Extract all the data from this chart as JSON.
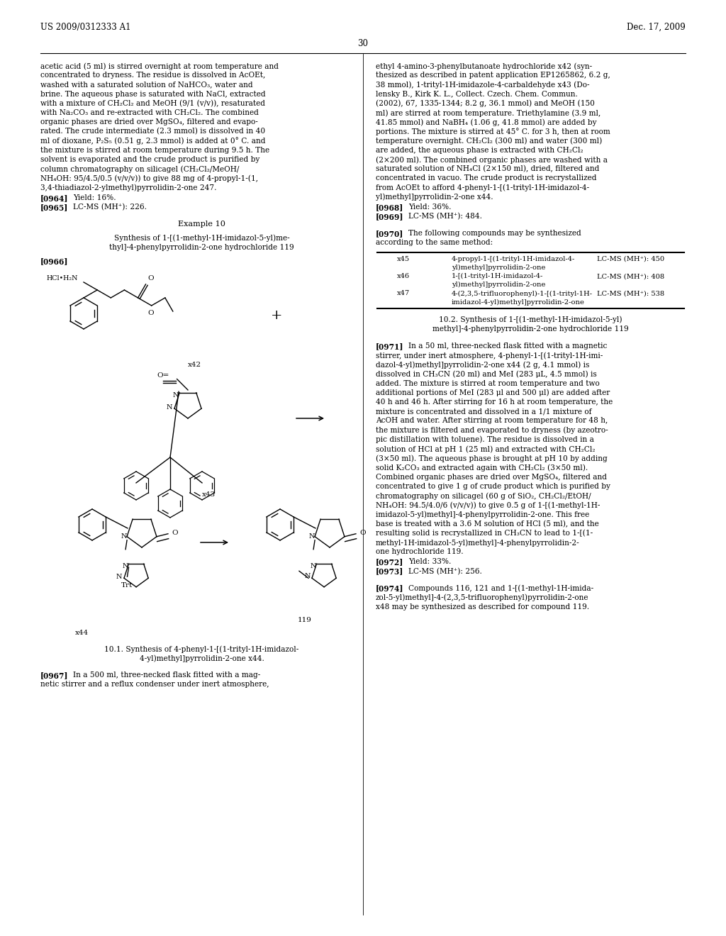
{
  "page_width": 10.24,
  "page_height": 13.2,
  "bg_color": "#ffffff",
  "header_left": "US 2009/0312333 A1",
  "header_right": "Dec. 17, 2009",
  "page_number": "30",
  "left_col_lines": [
    "acetic acid (5 ml) is stirred overnight at room temperature and",
    "concentrated to dryness. The residue is dissolved in AcOEt,",
    "washed with a saturated solution of NaHCO₃, water and",
    "brine. The aqueous phase is saturated with NaCl, extracted",
    "with a mixture of CH₂Cl₂ and MeOH (9/1 (v/v)), resaturated",
    "with Na₂CO₃ and re-extracted with CH₂Cl₂. The combined",
    "organic phases are dried over MgSO₄, filtered and evapo-",
    "rated. The crude intermediate (2.3 mmol) is dissolved in 40",
    "ml of dioxane, P₂S₅ (0.51 g, 2.3 mmol) is added at 0° C. and",
    "the mixture is stirred at room temperature during 9.5 h. The",
    "solvent is evaporated and the crude product is purified by",
    "column chromatography on silicagel (CH₂Cl₂/MeOH/",
    "NH₄OH: 95/4.5/0.5 (v/v/v)) to give 88 mg of 4-propyl-1-(1,",
    "3,4-thiadiazol-2-ylmethyl)pyrrolidin-2-one 247."
  ],
  "right_col_lines": [
    "ethyl 4-amino-3-phenylbutanoate hydrochloride x42 (syn-",
    "thesized as described in patent application EP1265862, 6.2 g,",
    "38 mmol), 1-trityl-1H-imidazole-4-carbaldehyde x43 (Do-",
    "lensky B., Kirk K. L., Collect. Czech. Chem. Commun.",
    "(2002), 67, 1335-1344; 8.2 g, 36.1 mmol) and MeOH (150",
    "ml) are stirred at room temperature. Triethylamine (3.9 ml,",
    "41.85 mmol) and NaBH₄ (1.06 g, 41.8 mmol) are added by",
    "portions. The mixture is stirred at 45° C. for 3 h, then at room",
    "temperature overnight. CH₂Cl₂ (300 ml) and water (300 ml)",
    "are added, the aqueous phase is extracted with CH₂Cl₂",
    "(2×200 ml). The combined organic phases are washed with a",
    "saturated solution of NH₄Cl (2×150 ml), dried, filtered and",
    "concentrated in vacuo. The crude product is recrystallized",
    "from AcOEt to afford 4-phenyl-1-[(1-trityl-1H-imidazol-4-",
    "yl)methyl]pyrrolidin-2-one x44."
  ],
  "right_lower_lines": [
    "stirrer, under inert atmosphere, 4-phenyl-1-[(1-trityl-1H-imi-",
    "dazol-4-yl)methyl]pyrrolidin-2-one x44 (2 g, 4.1 mmol) is",
    "dissolved in CH₃CN (20 ml) and MeI (283 μL, 4.5 mmol) is",
    "added. The mixture is stirred at room temperature and two",
    "additional portions of MeI (283 μl and 500 μl) are added after",
    "40 h and 46 h. After stirring for 16 h at room temperature, the",
    "mixture is concentrated and dissolved in a 1/1 mixture of",
    "AcOH and water. After stirring at room temperature for 48 h,",
    "the mixture is filtered and evaporated to dryness (by azeotro-",
    "pic distillation with toluene). The residue is dissolved in a",
    "solution of HCl at pH 1 (25 ml) and extracted with CH₂Cl₂",
    "(3×50 ml). The aqueous phase is brought at pH 10 by adding",
    "solid K₂CO₃ and extracted again with CH₂Cl₂ (3×50 ml).",
    "Combined organic phases are dried over MgSO₄, filtered and",
    "concentrated to give 1 g of crude product which is purified by",
    "chromatography on silicagel (60 g of SiO₂, CH₂Cl₂/EtOH/",
    "NH₄OH: 94.5/4.0/6 (v/v/v)) to give 0.5 g of 1-[(1-methyl-1H-",
    "imidazol-5-yl)methyl]-4-phenylpyrrolidin-2-one. This free",
    "base is treated with a 3.6 M solution of HCl (5 ml), and the",
    "resulting solid is recrystallized in CH₃CN to lead to 1-[(1-",
    "methyl-1H-imidazol-5-yl)methyl]-4-phenylpyrrolidin-2-",
    "one hydrochloride 119."
  ],
  "table_rows": [
    [
      "x45",
      "4-propyl-1-[(1-trityl-1H-imidazol-4-",
      "LC-MS (MH⁺): 450"
    ],
    [
      "",
      "yl)methyl]pyrrolidin-2-one",
      ""
    ],
    [
      "x46",
      "1-[(1-trityl-1H-imidazol-4-",
      "LC-MS (MH⁺): 408"
    ],
    [
      "",
      "yl)methyl]pyrrolidin-2-one",
      ""
    ],
    [
      "x47",
      "4-(2,3,5-trifluorophenyl)-1-[(1-trityl-1H-",
      "LC-MS (MH⁺): 538"
    ],
    [
      "",
      "imidazol-4-yl)methyl]pyrrolidin-2-one",
      ""
    ]
  ]
}
